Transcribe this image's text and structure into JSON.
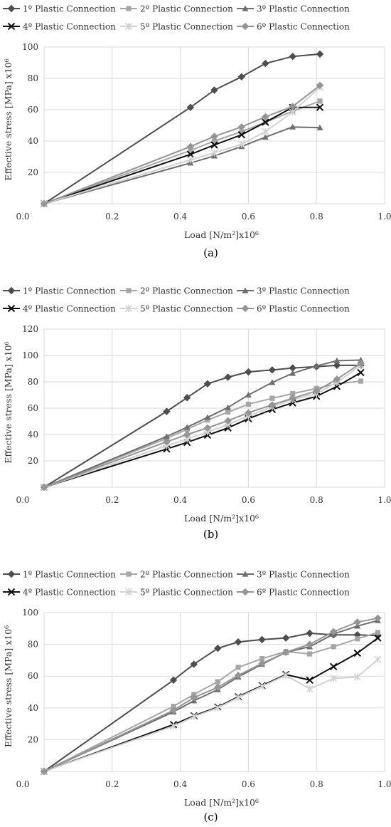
{
  "colors": {
    "s1": "#4d4d4d",
    "s2": "#a6a6a6",
    "s3": "#6e6e6e",
    "s4": "#111111",
    "s5": "#d2d2d2",
    "s6": "#959595"
  },
  "chart_data": [
    {
      "type": "line",
      "panel_label": "(a)",
      "xlabel": "Load [N/m²]x10⁶",
      "ylabel": "Effective stress [MPa] x10⁶",
      "xlim": [
        0,
        1.0
      ],
      "ylim": [
        0,
        100
      ],
      "x_ticks": [
        "0.0",
        "0.2",
        "0.4",
        "0.6",
        "0.8",
        "1.0"
      ],
      "y_ticks": [
        "20",
        "40",
        "60",
        "80",
        "100"
      ],
      "legend_position": "top",
      "grid": true,
      "series": [
        {
          "name": "1º Plastic Connection",
          "marker": "diamond",
          "x": [
            0,
            0.43,
            0.5,
            0.58,
            0.65,
            0.73,
            0.81
          ],
          "y": [
            0,
            61.5,
            72.5,
            81,
            89.5,
            94,
            95.5
          ]
        },
        {
          "name": "2º Plastic Connection",
          "marker": "square",
          "x": [
            0,
            0.43,
            0.5,
            0.58,
            0.65,
            0.73,
            0.81
          ],
          "y": [
            0,
            34,
            40,
            46,
            52,
            59,
            65.5
          ]
        },
        {
          "name": "3º Plastic Connection",
          "marker": "triangle",
          "x": [
            0,
            0.43,
            0.5,
            0.58,
            0.65,
            0.73,
            0.81
          ],
          "y": [
            0,
            26,
            30.5,
            36.5,
            42.5,
            49,
            48.5
          ]
        },
        {
          "name": "4º Plastic Connection",
          "marker": "x",
          "x": [
            0,
            0.43,
            0.5,
            0.58,
            0.65,
            0.73,
            0.81
          ],
          "y": [
            0,
            31.5,
            37.5,
            44,
            52,
            61.5,
            61.5
          ]
        },
        {
          "name": "5º Plastic Connection",
          "marker": "star",
          "x": [
            0,
            0.43,
            0.5,
            0.58,
            0.65,
            0.73,
            0.81
          ],
          "y": [
            0,
            28,
            32.5,
            38,
            46,
            58.5,
            74.5
          ]
        },
        {
          "name": "6º Plastic Connection",
          "marker": "diamond",
          "x": [
            0,
            0.43,
            0.5,
            0.58,
            0.65,
            0.73,
            0.81
          ],
          "y": [
            0,
            36.5,
            43,
            49,
            55.5,
            62,
            75.5
          ]
        }
      ]
    },
    {
      "type": "line",
      "panel_label": "(b)",
      "xlabel": "Load [N/m²]x10⁶",
      "ylabel": "Effective stress [MPa] x10⁶",
      "xlim": [
        0,
        1.0
      ],
      "ylim": [
        0,
        120
      ],
      "x_ticks": [
        "0.0",
        "0.2",
        "0.4",
        "0.6",
        "0.8",
        "1.0"
      ],
      "y_ticks": [
        "20",
        "40",
        "60",
        "80",
        "100",
        "120"
      ],
      "legend_position": "top",
      "grid": true,
      "series": [
        {
          "name": "1º Plastic Connection",
          "marker": "diamond",
          "x": [
            0,
            0.36,
            0.42,
            0.48,
            0.54,
            0.6,
            0.67,
            0.73,
            0.8,
            0.86,
            0.93
          ],
          "y": [
            0,
            57.5,
            68,
            78.5,
            83.5,
            87.5,
            89,
            90.5,
            91.5,
            92.5,
            92.5
          ]
        },
        {
          "name": "2º Plastic Connection",
          "marker": "square",
          "x": [
            0,
            0.36,
            0.42,
            0.48,
            0.54,
            0.6,
            0.67,
            0.73,
            0.8,
            0.86,
            0.93
          ],
          "y": [
            0,
            37,
            44,
            51,
            57,
            63,
            67.5,
            71,
            75,
            78.5,
            80.5
          ]
        },
        {
          "name": "3º Plastic Connection",
          "marker": "triangle",
          "x": [
            0,
            0.36,
            0.42,
            0.48,
            0.54,
            0.6,
            0.67,
            0.73,
            0.8,
            0.86,
            0.93
          ],
          "y": [
            0,
            38.5,
            45.5,
            53,
            60.5,
            70,
            79.5,
            86.5,
            92,
            96,
            96.5
          ]
        },
        {
          "name": "4º Plastic Connection",
          "marker": "x",
          "x": [
            0,
            0.36,
            0.42,
            0.48,
            0.54,
            0.6,
            0.67,
            0.73,
            0.8,
            0.86,
            0.93
          ],
          "y": [
            0,
            29,
            34,
            39.5,
            45,
            52,
            59,
            64,
            69,
            76.5,
            87
          ]
        },
        {
          "name": "5º Plastic Connection",
          "marker": "star",
          "x": [
            0,
            0.36,
            0.42,
            0.48,
            0.54,
            0.6,
            0.67,
            0.73,
            0.8,
            0.86,
            0.93
          ],
          "y": [
            0,
            31.5,
            36.5,
            42,
            47.5,
            54,
            61,
            66.5,
            71,
            79.5,
            92.5
          ]
        },
        {
          "name": "6º Plastic Connection",
          "marker": "diamond",
          "x": [
            0,
            0.36,
            0.42,
            0.48,
            0.54,
            0.6,
            0.67,
            0.73,
            0.8,
            0.86,
            0.93
          ],
          "y": [
            0,
            34.5,
            40,
            45,
            50.5,
            56.5,
            62.5,
            67.5,
            73,
            82,
            94
          ]
        }
      ]
    },
    {
      "type": "line",
      "panel_label": "(c)",
      "xlabel": "Load [N/m²]x10⁶",
      "ylabel": "Effective stress [MPa] x10⁶",
      "xlim": [
        0,
        1.0
      ],
      "ylim": [
        0,
        100
      ],
      "x_ticks": [
        "0.0",
        "0.2",
        "0.4",
        "0.6",
        "0.8",
        "1.0"
      ],
      "y_ticks": [
        "20",
        "40",
        "60",
        "80",
        "100"
      ],
      "legend_position": "top",
      "grid": true,
      "series": [
        {
          "name": "1º Plastic Connection",
          "marker": "diamond",
          "x": [
            0,
            0.38,
            0.44,
            0.51,
            0.57,
            0.64,
            0.71,
            0.78,
            0.85,
            0.92,
            0.98
          ],
          "y": [
            0,
            57.5,
            67.5,
            77.5,
            81.5,
            83,
            84,
            87,
            86,
            86,
            85.5
          ]
        },
        {
          "name": "2º Plastic Connection",
          "marker": "square",
          "x": [
            0,
            0.38,
            0.44,
            0.51,
            0.57,
            0.64,
            0.71,
            0.78,
            0.85,
            0.92,
            0.98
          ],
          "y": [
            0,
            41,
            48.5,
            56.5,
            65.5,
            71,
            75.5,
            74,
            78.5,
            83.5,
            87.5
          ]
        },
        {
          "name": "3º Plastic Connection",
          "marker": "triangle",
          "x": [
            0,
            0.38,
            0.44,
            0.51,
            0.57,
            0.64,
            0.71,
            0.78,
            0.85,
            0.92,
            0.98
          ],
          "y": [
            0,
            37.5,
            44.5,
            51.5,
            59.5,
            67.5,
            75,
            78.5,
            86.5,
            91.5,
            95
          ]
        },
        {
          "name": "4º Plastic Connection",
          "marker": "x",
          "x": [
            0,
            0.38,
            0.44,
            0.51,
            0.57,
            0.64,
            0.71,
            0.78,
            0.85,
            0.92,
            0.98
          ],
          "y": [
            0,
            29.5,
            35,
            40.5,
            47,
            54,
            61,
            57.5,
            66,
            74.5,
            84
          ]
        },
        {
          "name": "5º Plastic Connection",
          "marker": "star",
          "x": [
            0,
            0.38,
            0.44,
            0.51,
            0.57,
            0.64,
            0.71,
            0.78,
            0.85,
            0.92,
            0.98
          ],
          "y": [
            0,
            28.5,
            34.5,
            40,
            46.5,
            53.5,
            60.5,
            52,
            58.5,
            59.5,
            70.5
          ]
        },
        {
          "name": "6º Plastic Connection",
          "marker": "diamond",
          "x": [
            0,
            0.38,
            0.44,
            0.51,
            0.57,
            0.64,
            0.71,
            0.78,
            0.85,
            0.92,
            0.98
          ],
          "y": [
            0,
            38.5,
            46.5,
            53,
            60.5,
            68,
            75,
            80,
            88,
            94,
            96.5
          ]
        }
      ]
    }
  ]
}
